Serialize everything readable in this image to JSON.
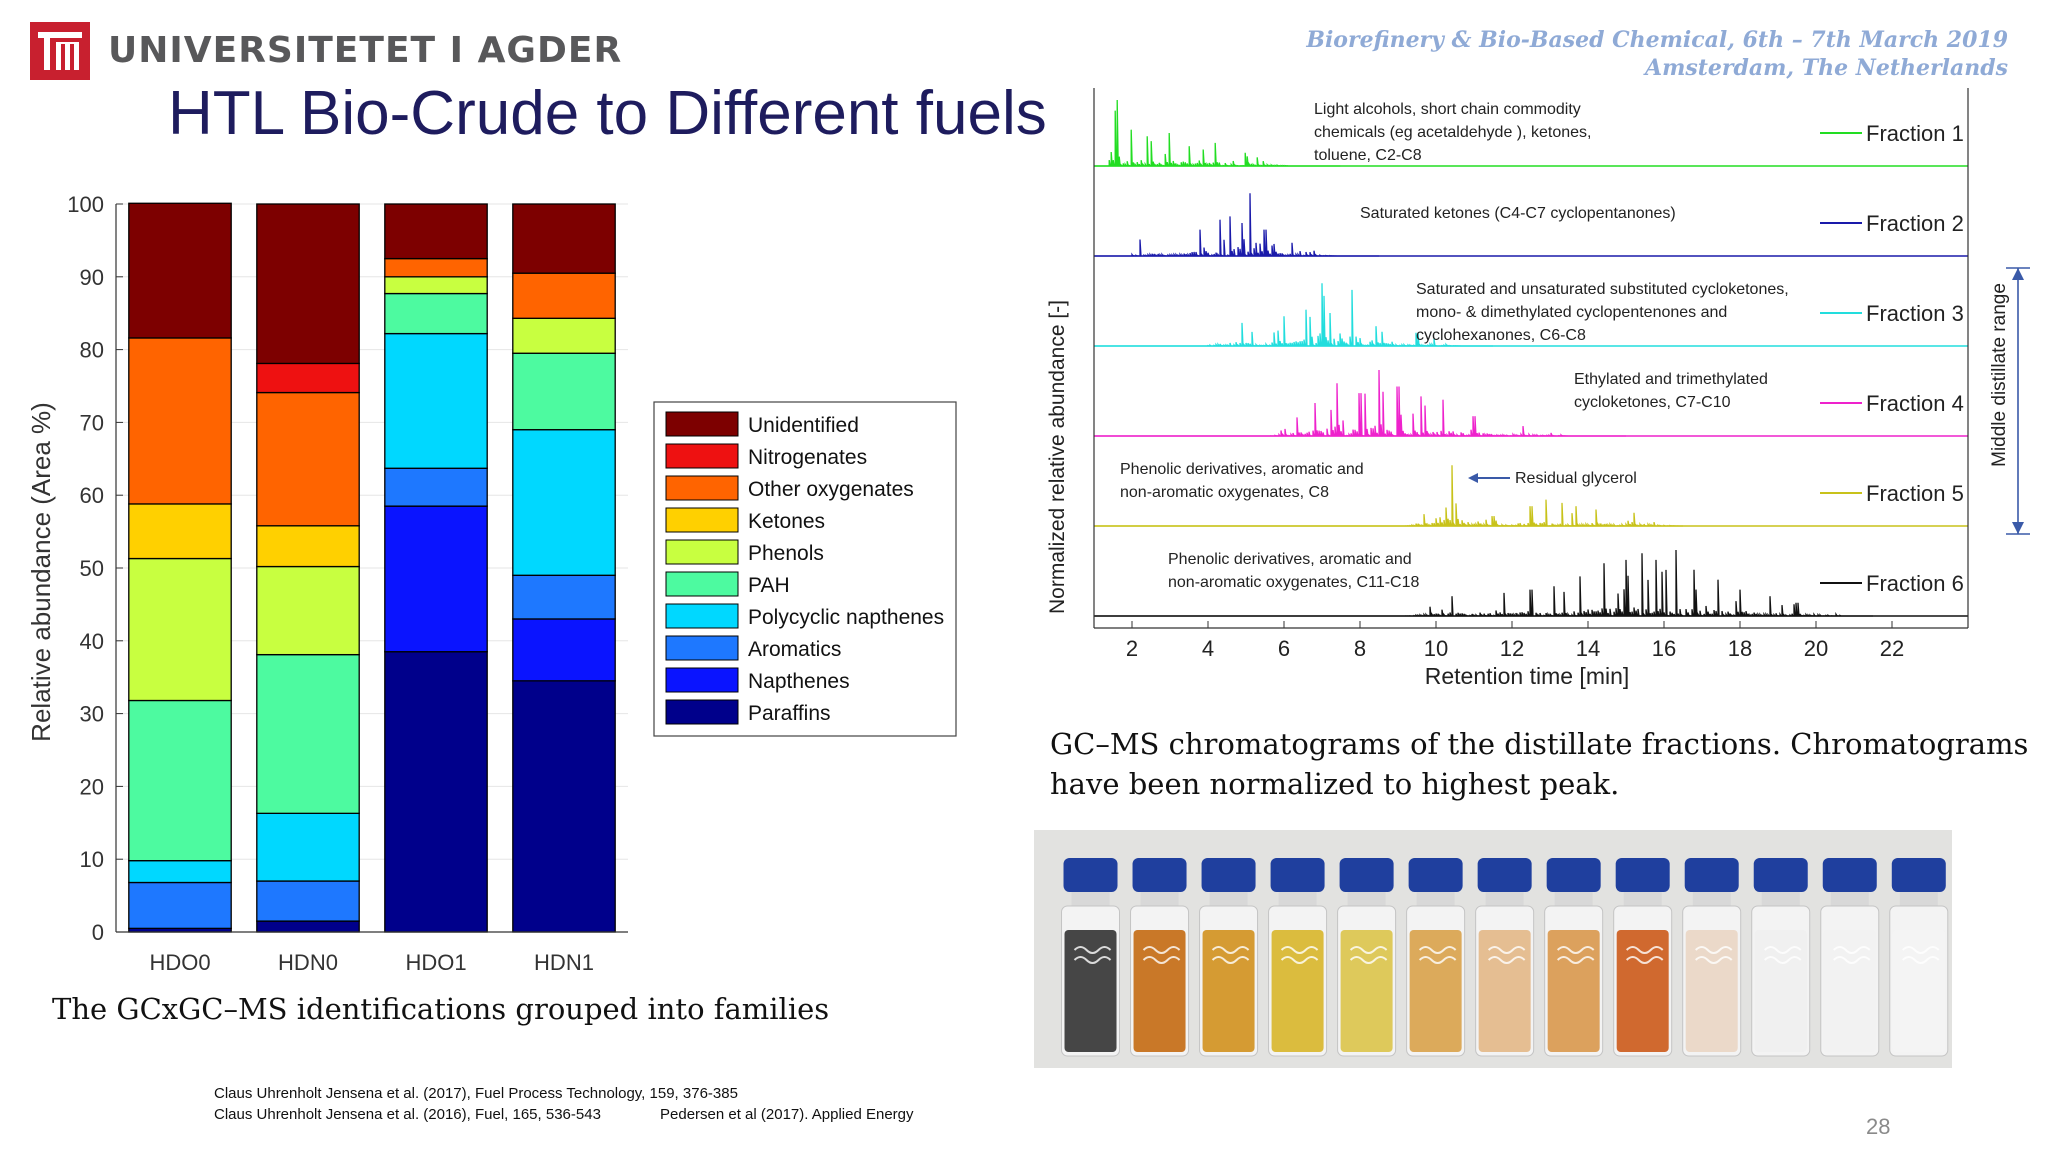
{
  "header": {
    "university": "UNIVERSITETET I AGDER",
    "conference_line1": "Biorefinery & Bio-Based Chemical, 6th – 7th March 2019",
    "conference_line2": "Amsterdam, The Netherlands",
    "slide_title": "HTL Bio-Crude to Different fuels"
  },
  "colors": {
    "logo_red": "#c8202f",
    "title_navy": "#1e1c5e",
    "conference_blue": "#8faad6"
  },
  "chart_data": [
    {
      "type": "bar",
      "stacked": true,
      "title": "",
      "xlabel": "",
      "ylabel": "Relative abundance (Area %)",
      "ylim": [
        0,
        100
      ],
      "yticks": [
        0,
        10,
        20,
        30,
        40,
        50,
        60,
        70,
        80,
        90,
        100
      ],
      "grid": true,
      "legend_position": "right",
      "categories": [
        "HDO0",
        "HDN0",
        "HDO1",
        "HDN1"
      ],
      "series": [
        {
          "name": "Paraffins",
          "color": "#00008b",
          "values": [
            0.5,
            1.5,
            38.5,
            34.5
          ]
        },
        {
          "name": "Napthenes",
          "color": "#0a14ff",
          "values": [
            0,
            0,
            20,
            8.5
          ]
        },
        {
          "name": "Aromatics",
          "color": "#1e78ff",
          "values": [
            6.3,
            5.5,
            5.2,
            6
          ]
        },
        {
          "name": "Polycyclic napthenes",
          "color": "#00d8ff",
          "values": [
            3,
            9.3,
            18.5,
            20
          ]
        },
        {
          "name": "PAH",
          "color": "#4dfaa0",
          "values": [
            22,
            21.8,
            5.5,
            10.5
          ]
        },
        {
          "name": "Phenols",
          "color": "#c8ff40",
          "values": [
            19.5,
            12.1,
            2.3,
            4.8
          ]
        },
        {
          "name": "Ketones",
          "color": "#ffd000",
          "values": [
            7.5,
            5.6,
            0,
            0
          ]
        },
        {
          "name": "Other oxygenates",
          "color": "#ff6400",
          "values": [
            22.8,
            18.3,
            2.5,
            6.2
          ]
        },
        {
          "name": "Nitrogenates",
          "color": "#ee1111",
          "values": [
            0,
            4,
            0,
            0
          ]
        },
        {
          "name": "Unidentified",
          "color": "#7d0000",
          "values": [
            18.5,
            21.9,
            7.5,
            9.5
          ]
        }
      ],
      "legend_order": [
        "Unidentified",
        "Nitrogenates",
        "Other oxygenates",
        "Ketones",
        "Phenols",
        "PAH",
        "Polycyclic napthenes",
        "Aromatics",
        "Napthenes",
        "Paraffins"
      ]
    },
    {
      "type": "line",
      "title": "",
      "xlabel": "Retention time [min]",
      "ylabel": "Normalized relative abundance [-]",
      "xlim": [
        1,
        24
      ],
      "xticks": [
        2,
        4,
        6,
        8,
        10,
        12,
        14,
        16,
        18,
        20,
        22
      ],
      "bracket_label": "Middle distillate range",
      "series": [
        {
          "name": "Fraction 1",
          "color": "#22dd22",
          "region": [
            1.4,
            7.5
          ],
          "peaks": [
            [
              1.6,
              1.0
            ],
            [
              2.0,
              0.55
            ],
            [
              2.4,
              0.45
            ],
            [
              3.0,
              0.5
            ],
            [
              3.5,
              0.3
            ],
            [
              4.2,
              0.35
            ],
            [
              5.0,
              0.2
            ]
          ],
          "annotation": "Light alcohols, short chain commodity chemicals (eg acetaldehyde ), ketones, toluene, C2-C8"
        },
        {
          "name": "Fraction 2",
          "color": "#1a1aaa",
          "region": [
            2.0,
            8.5
          ],
          "peaks": [
            [
              2.2,
              0.25
            ],
            [
              3.8,
              0.4
            ],
            [
              4.3,
              0.55
            ],
            [
              4.6,
              0.6
            ],
            [
              4.9,
              0.5
            ],
            [
              5.1,
              0.95
            ],
            [
              5.5,
              0.4
            ],
            [
              6.2,
              0.2
            ]
          ],
          "annotation": "Saturated ketones (C4-C7 cyclopentanones)"
        },
        {
          "name": "Fraction 3",
          "color": "#22dddd",
          "region": [
            4.0,
            11.5
          ],
          "peaks": [
            [
              4.9,
              0.35
            ],
            [
              6.0,
              0.45
            ],
            [
              6.6,
              0.55
            ],
            [
              7.0,
              0.95
            ],
            [
              7.2,
              0.5
            ],
            [
              7.8,
              0.85
            ],
            [
              8.4,
              0.3
            ],
            [
              9.5,
              0.2
            ]
          ],
          "annotation": "Saturated and unsaturated substituted cycloketones, mono- & dimethylated cyclopentenones and cyclohexanones, C6-C8"
        },
        {
          "name": "Fraction 4",
          "color": "#ee22cc",
          "region": [
            5.5,
            15.0
          ],
          "peaks": [
            [
              6.8,
              0.5
            ],
            [
              7.4,
              0.8
            ],
            [
              8.0,
              0.65
            ],
            [
              8.5,
              1.0
            ],
            [
              9.0,
              0.75
            ],
            [
              9.6,
              0.6
            ],
            [
              10.2,
              0.55
            ],
            [
              11.0,
              0.3
            ],
            [
              12.3,
              0.15
            ]
          ],
          "annotation": "Ethylated and trimethylated cycloketones, C7-C10"
        },
        {
          "name": "Fraction 5",
          "color": "#c8c21a",
          "region": [
            7.0,
            16.5
          ],
          "peaks": [
            [
              10.4,
              0.92
            ],
            [
              11.5,
              0.15
            ],
            [
              12.5,
              0.3
            ],
            [
              12.9,
              0.4
            ],
            [
              13.3,
              0.35
            ],
            [
              13.7,
              0.3
            ],
            [
              14.2,
              0.25
            ],
            [
              15.2,
              0.2
            ]
          ],
          "annotation": "Phenolic derivatives, aromatic  and non-aromatic oxygenates, C8",
          "note": "Residual glycerol"
        },
        {
          "name": "Fraction 6",
          "color": "#111111",
          "region": [
            9.0,
            21.5
          ],
          "peaks": [
            [
              10.4,
              0.3
            ],
            [
              11.8,
              0.35
            ],
            [
              12.5,
              0.4
            ],
            [
              13.1,
              0.45
            ],
            [
              13.8,
              0.6
            ],
            [
              14.4,
              0.8
            ],
            [
              15.0,
              0.85
            ],
            [
              15.4,
              0.95
            ],
            [
              15.8,
              0.85
            ],
            [
              16.3,
              1.0
            ],
            [
              16.8,
              0.7
            ],
            [
              17.4,
              0.55
            ],
            [
              18.0,
              0.4
            ],
            [
              18.8,
              0.3
            ],
            [
              19.5,
              0.2
            ]
          ],
          "annotation": "Phenolic derivatives, aromatic and non-aromatic oxygenates, C11-C18"
        }
      ]
    }
  ],
  "captions": {
    "left": "The GCxGC–MS identifications grouped into families",
    "right": "GC–MS chromatograms of the distillate fractions. Chromatograms have been normalized to highest peak."
  },
  "references": {
    "ref1": "Claus Uhrenholt Jensena et al. (2017), Fuel Process Technology, 159, 376-385",
    "ref2": "Claus Uhrenholt Jensena et al. (2016), Fuel, 165, 536-543",
    "ref3": "Pedersen et al (2017).  Applied Energy"
  },
  "page_number": "28",
  "photo": {
    "vial_cap_color": "#1f3f9e",
    "vial_liquid_colors": [
      "#333333",
      "#c46a12",
      "#d2911e",
      "#d8b62a",
      "#dcc44a",
      "#d9a24a",
      "#e3b887",
      "#d9984c",
      "#cc5a1a",
      "#ead6c4",
      "#f0f0f0",
      "#f2f2f2",
      "#f4f4f4"
    ]
  }
}
